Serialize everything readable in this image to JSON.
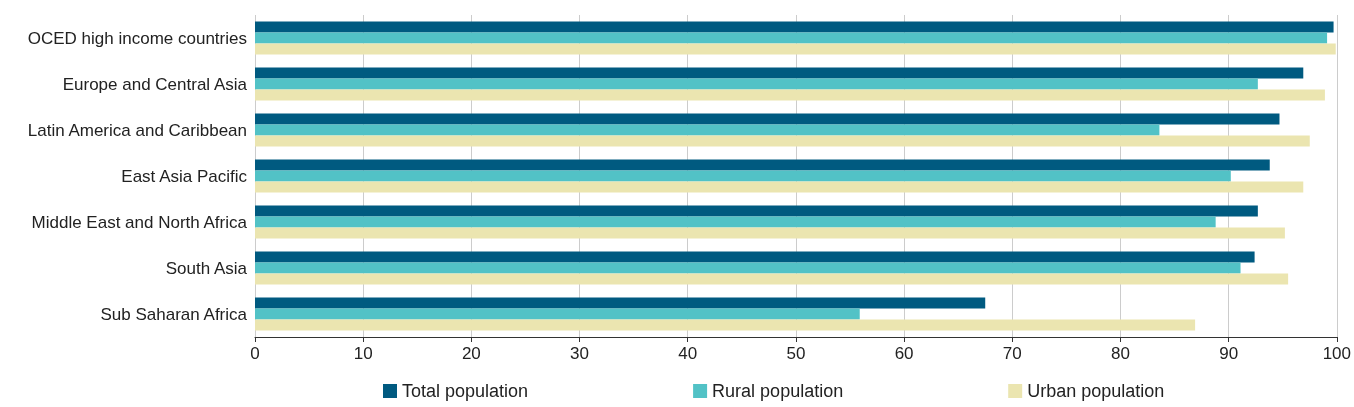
{
  "chart_data": {
    "type": "bar",
    "orientation": "horizontal",
    "categories": [
      "OCED high income countries",
      "Europe and Central Asia",
      "Latin America and Caribbean",
      "East Asia Pacific",
      "Middle East and North Africa",
      "South Asia",
      "Sub Saharan Africa"
    ],
    "series": [
      {
        "name": "Total population",
        "color": "#005a80",
        "values": [
          99.7,
          96.9,
          94.7,
          93.8,
          92.7,
          92.4,
          67.5
        ]
      },
      {
        "name": "Rural population",
        "color": "#52c2c6",
        "values": [
          99.1,
          92.7,
          83.6,
          90.2,
          88.8,
          91.1,
          55.9
        ]
      },
      {
        "name": "Urban population",
        "color": "#ebe5b0",
        "values": [
          99.9,
          98.9,
          97.5,
          96.9,
          95.2,
          95.5,
          86.9
        ]
      }
    ],
    "xlim": [
      0,
      100
    ],
    "xticks": [
      0,
      10,
      20,
      30,
      40,
      50,
      60,
      70,
      80,
      90,
      100
    ],
    "grid": "x",
    "legend": "bottom"
  }
}
